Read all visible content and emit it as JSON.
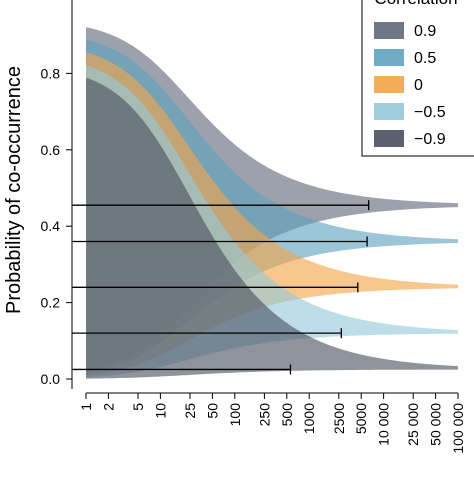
{
  "chart_data": {
    "type": "area",
    "title": "",
    "ylabel": "Probability of co-occurrence",
    "xlabel": "",
    "x_scale": "log",
    "xlim": [
      1,
      100000
    ],
    "ylim": [
      0,
      1
    ],
    "yticks": [
      0.0,
      0.2,
      0.4,
      0.6,
      0.8
    ],
    "ytick_labels": [
      "0.0",
      "0.2",
      "0.4",
      "0.6",
      "0.8"
    ],
    "xticks": [
      1,
      2,
      5,
      10,
      25,
      50,
      100,
      250,
      500,
      1000,
      2500,
      5000,
      10000,
      25000,
      50000,
      100000
    ],
    "xtick_labels": [
      "1",
      "2",
      "5",
      "10",
      "25",
      "50",
      "100",
      "250",
      "500",
      "1000",
      "2500",
      "5000",
      "10 000",
      "25 000",
      "50 000",
      "100 000"
    ],
    "legend": {
      "title": "Correlation",
      "position": "top-right"
    },
    "series": [
      {
        "name": "0.9",
        "color": "#5f6778",
        "asymptote": 0.455,
        "start_upper": 0.94,
        "start_lower": 0.0,
        "error_bar_end": 6300
      },
      {
        "name": "0.5",
        "color": "#5fa3bf",
        "asymptote": 0.36,
        "start_upper": 0.91,
        "start_lower": 0.0,
        "error_bar_end": 6000
      },
      {
        "name": "0",
        "color": "#f2a447",
        "asymptote": 0.24,
        "start_upper": 0.88,
        "start_lower": 0.0,
        "error_bar_end": 4500
      },
      {
        "name": "−0.5",
        "color": "#95c9dc",
        "asymptote": 0.12,
        "start_upper": 0.85,
        "start_lower": 0.0,
        "error_bar_end": 2700
      },
      {
        "name": "−0.9",
        "color": "#4a5060",
        "asymptote": 0.025,
        "start_upper": 0.82,
        "start_lower": 0.0,
        "error_bar_end": 560
      }
    ]
  }
}
